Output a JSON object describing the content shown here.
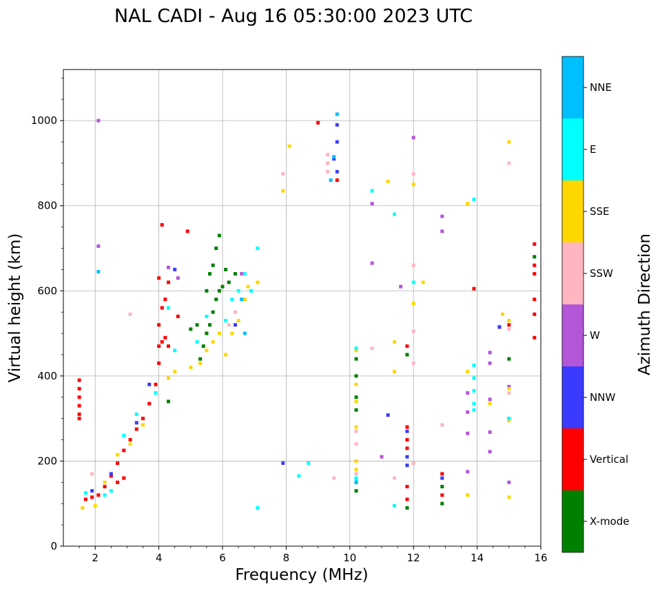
{
  "chart_data": {
    "type": "scatter",
    "title": "NAL CADI - Aug 16 05:30:00 2023 UTC",
    "xlabel": "Frequency (MHz)",
    "ylabel": "Virtual height (km)",
    "xlim": [
      1,
      16
    ],
    "ylim": [
      0,
      1120
    ],
    "xticks": [
      2,
      4,
      6,
      8,
      10,
      12,
      14,
      16
    ],
    "yticks": [
      0,
      200,
      400,
      600,
      800,
      1000
    ],
    "grid": true,
    "colorbar": {
      "label": "Azimuth Direction",
      "categories": [
        "X-mode",
        "Vertical",
        "NNW",
        "W",
        "SSW",
        "SSE",
        "E",
        "NNE"
      ],
      "colors": [
        "#008000",
        "#ff0000",
        "#3b3bff",
        "#b456d8",
        "#ffb6c1",
        "#ffd700",
        "#00ffff",
        "#00bfff"
      ]
    },
    "series": [
      {
        "name": "X-mode",
        "points": [
          [
            5.3,
            440
          ],
          [
            5.4,
            470
          ],
          [
            5.5,
            500
          ],
          [
            5.6,
            520
          ],
          [
            5.7,
            550
          ],
          [
            5.8,
            580
          ],
          [
            5.9,
            600
          ],
          [
            6.0,
            610
          ],
          [
            5.6,
            640
          ],
          [
            5.8,
            700
          ],
          [
            5.9,
            730
          ],
          [
            6.1,
            650
          ],
          [
            6.2,
            620
          ],
          [
            5.2,
            520
          ],
          [
            5.0,
            510
          ],
          [
            5.5,
            600
          ],
          [
            5.7,
            660
          ],
          [
            6.4,
            640
          ],
          [
            10.2,
            440
          ],
          [
            10.2,
            400
          ],
          [
            10.2,
            350
          ],
          [
            10.2,
            320
          ],
          [
            10.2,
            150
          ],
          [
            10.2,
            130
          ],
          [
            11.8,
            90
          ],
          [
            11.8,
            450
          ],
          [
            12.9,
            140
          ],
          [
            12.9,
            100
          ],
          [
            15.0,
            440
          ],
          [
            15.8,
            680
          ],
          [
            4.3,
            340
          ]
        ]
      },
      {
        "name": "Vertical",
        "points": [
          [
            1.5,
            390
          ],
          [
            1.5,
            370
          ],
          [
            1.5,
            350
          ],
          [
            1.5,
            330
          ],
          [
            1.5,
            310
          ],
          [
            1.5,
            300
          ],
          [
            1.7,
            110
          ],
          [
            1.9,
            115
          ],
          [
            2.1,
            120
          ],
          [
            2.3,
            140
          ],
          [
            2.5,
            165
          ],
          [
            2.7,
            195
          ],
          [
            2.9,
            225
          ],
          [
            3.1,
            250
          ],
          [
            3.3,
            275
          ],
          [
            3.5,
            300
          ],
          [
            3.7,
            335
          ],
          [
            3.9,
            380
          ],
          [
            4.0,
            430
          ],
          [
            4.0,
            470
          ],
          [
            4.0,
            520
          ],
          [
            4.1,
            480
          ],
          [
            4.2,
            490
          ],
          [
            4.3,
            470
          ],
          [
            4.1,
            560
          ],
          [
            4.2,
            580
          ],
          [
            4.0,
            630
          ],
          [
            4.1,
            755
          ],
          [
            4.6,
            540
          ],
          [
            4.9,
            740
          ],
          [
            4.3,
            620
          ],
          [
            9.0,
            995
          ],
          [
            9.6,
            860
          ],
          [
            11.8,
            470
          ],
          [
            11.8,
            280
          ],
          [
            11.8,
            250
          ],
          [
            11.8,
            230
          ],
          [
            11.8,
            140
          ],
          [
            11.8,
            110
          ],
          [
            12.9,
            170
          ],
          [
            12.9,
            120
          ],
          [
            13.9,
            605
          ],
          [
            14.7,
            515
          ],
          [
            15.0,
            520
          ],
          [
            15.8,
            710
          ],
          [
            15.8,
            660
          ],
          [
            15.8,
            640
          ],
          [
            15.8,
            580
          ],
          [
            15.8,
            545
          ],
          [
            15.8,
            490
          ],
          [
            2.9,
            160
          ],
          [
            2.7,
            150
          ]
        ]
      },
      {
        "name": "NNW",
        "points": [
          [
            1.9,
            130
          ],
          [
            2.5,
            170
          ],
          [
            3.3,
            290
          ],
          [
            3.7,
            380
          ],
          [
            4.5,
            650
          ],
          [
            6.4,
            520
          ],
          [
            9.5,
            910
          ],
          [
            9.6,
            990
          ],
          [
            9.6,
            950
          ],
          [
            9.6,
            880
          ],
          [
            7.9,
            195
          ],
          [
            11.2,
            308
          ],
          [
            11.8,
            270
          ],
          [
            11.8,
            210
          ],
          [
            11.8,
            190
          ],
          [
            12.9,
            160
          ],
          [
            14.7,
            515
          ],
          [
            15.0,
            300
          ]
        ]
      },
      {
        "name": "W",
        "points": [
          [
            2.1,
            705
          ],
          [
            2.1,
            1000
          ],
          [
            4.3,
            655
          ],
          [
            4.6,
            630
          ],
          [
            6.6,
            640
          ],
          [
            10.7,
            665
          ],
          [
            10.7,
            805
          ],
          [
            11.0,
            210
          ],
          [
            11.6,
            610
          ],
          [
            12.0,
            960
          ],
          [
            12.9,
            775
          ],
          [
            12.9,
            740
          ],
          [
            13.7,
            360
          ],
          [
            13.7,
            315
          ],
          [
            13.7,
            265
          ],
          [
            13.7,
            175
          ],
          [
            14.4,
            455
          ],
          [
            14.4,
            430
          ],
          [
            14.4,
            345
          ],
          [
            14.4,
            268
          ],
          [
            14.4,
            222
          ],
          [
            15.0,
            375
          ],
          [
            15.0,
            150
          ]
        ]
      },
      {
        "name": "SSW",
        "points": [
          [
            1.9,
            170
          ],
          [
            3.1,
            545
          ],
          [
            6.2,
            520
          ],
          [
            6.4,
            550
          ],
          [
            6.6,
            580
          ],
          [
            7.9,
            875
          ],
          [
            9.3,
            920
          ],
          [
            9.3,
            900
          ],
          [
            9.3,
            880
          ],
          [
            9.5,
            160
          ],
          [
            10.2,
            270
          ],
          [
            10.2,
            240
          ],
          [
            10.2,
            170
          ],
          [
            10.7,
            465
          ],
          [
            11.4,
            160
          ],
          [
            12.0,
            660
          ],
          [
            12.0,
            505
          ],
          [
            12.0,
            430
          ],
          [
            12.0,
            195
          ],
          [
            12.9,
            285
          ],
          [
            15.0,
            900
          ],
          [
            15.0,
            510
          ],
          [
            15.0,
            360
          ],
          [
            12.0,
            875
          ]
        ]
      },
      {
        "name": "SSE",
        "points": [
          [
            1.6,
            90
          ],
          [
            2.0,
            95
          ],
          [
            2.7,
            215
          ],
          [
            3.1,
            240
          ],
          [
            3.5,
            285
          ],
          [
            4.3,
            395
          ],
          [
            4.5,
            410
          ],
          [
            5.0,
            420
          ],
          [
            5.3,
            430
          ],
          [
            5.5,
            460
          ],
          [
            5.7,
            480
          ],
          [
            5.9,
            500
          ],
          [
            6.1,
            450
          ],
          [
            6.3,
            500
          ],
          [
            6.5,
            530
          ],
          [
            6.7,
            580
          ],
          [
            6.8,
            610
          ],
          [
            7.1,
            620
          ],
          [
            7.9,
            835
          ],
          [
            8.1,
            940
          ],
          [
            10.2,
            460
          ],
          [
            10.2,
            380
          ],
          [
            10.2,
            340
          ],
          [
            10.2,
            280
          ],
          [
            10.2,
            200
          ],
          [
            10.2,
            180
          ],
          [
            11.2,
            857
          ],
          [
            11.4,
            480
          ],
          [
            11.4,
            410
          ],
          [
            12.0,
            850
          ],
          [
            12.0,
            570
          ],
          [
            12.3,
            620
          ],
          [
            13.7,
            805
          ],
          [
            13.7,
            410
          ],
          [
            13.7,
            120
          ],
          [
            14.4,
            335
          ],
          [
            14.8,
            545
          ],
          [
            15.0,
            950
          ],
          [
            15.0,
            530
          ],
          [
            15.0,
            370
          ],
          [
            15.0,
            295
          ],
          [
            15.0,
            115
          ],
          [
            2.3,
            150
          ]
        ]
      },
      {
        "name": "E",
        "points": [
          [
            1.7,
            125
          ],
          [
            2.3,
            120
          ],
          [
            2.5,
            130
          ],
          [
            2.9,
            260
          ],
          [
            3.3,
            310
          ],
          [
            4.5,
            460
          ],
          [
            5.2,
            480
          ],
          [
            5.5,
            540
          ],
          [
            6.1,
            530
          ],
          [
            6.3,
            580
          ],
          [
            6.5,
            600
          ],
          [
            6.7,
            640
          ],
          [
            6.9,
            600
          ],
          [
            7.1,
            700
          ],
          [
            7.1,
            90
          ],
          [
            8.4,
            165
          ],
          [
            8.7,
            195
          ],
          [
            10.2,
            465
          ],
          [
            10.2,
            160
          ],
          [
            10.2,
            155
          ],
          [
            10.7,
            835
          ],
          [
            11.4,
            780
          ],
          [
            11.4,
            95
          ],
          [
            12.0,
            620
          ],
          [
            13.9,
            815
          ],
          [
            13.9,
            425
          ],
          [
            13.9,
            395
          ],
          [
            13.9,
            365
          ],
          [
            13.9,
            335
          ],
          [
            13.9,
            320
          ],
          [
            15.0,
            300
          ],
          [
            4.3,
            560
          ],
          [
            3.9,
            360
          ]
        ]
      },
      {
        "name": "NNE",
        "points": [
          [
            2.1,
            645
          ],
          [
            9.4,
            860
          ],
          [
            9.6,
            1015
          ],
          [
            9.5,
            915
          ],
          [
            6.6,
            580
          ],
          [
            6.7,
            500
          ],
          [
            10.2,
            150
          ]
        ]
      }
    ]
  }
}
